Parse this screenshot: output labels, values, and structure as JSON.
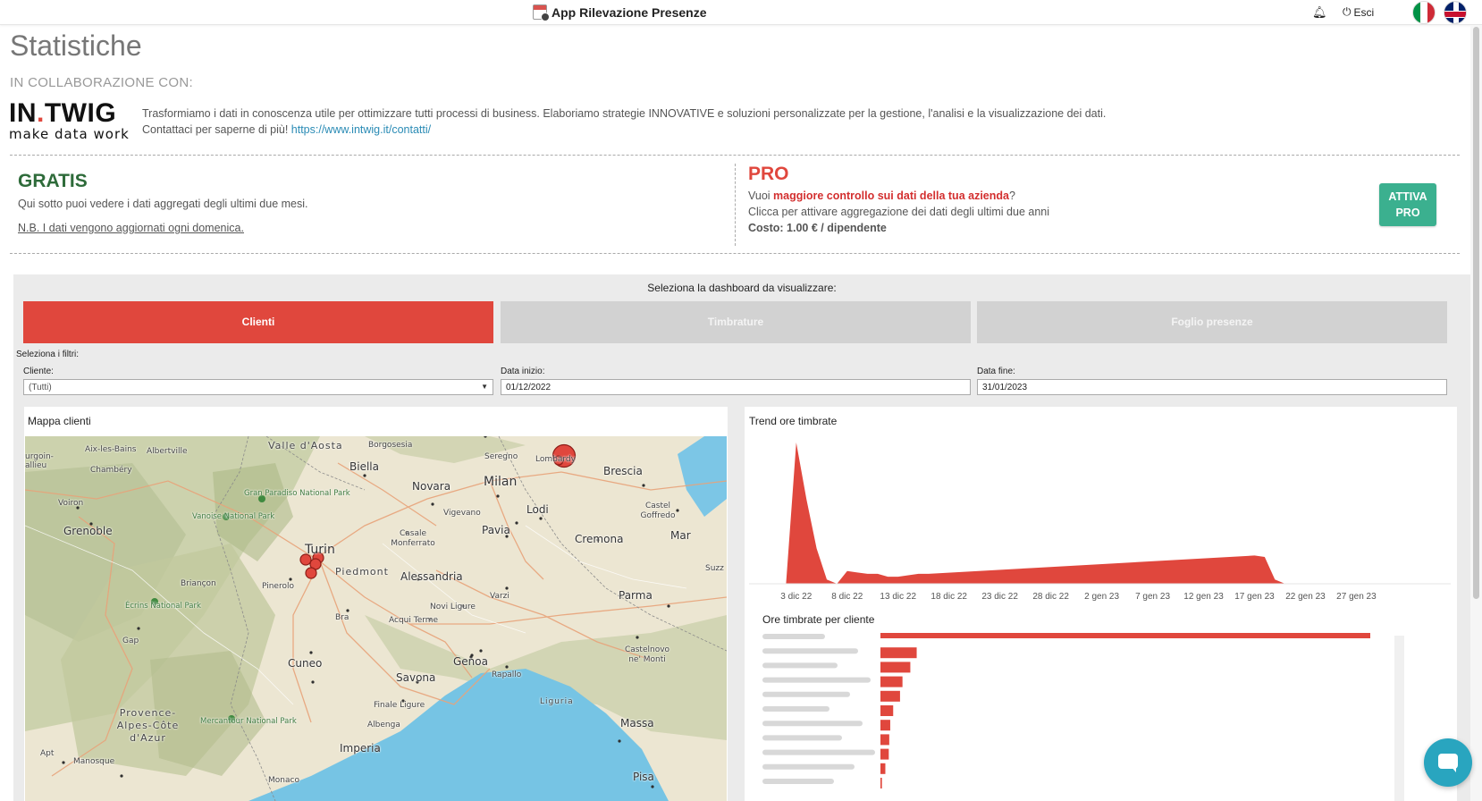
{
  "topbar": {
    "app_title": "App Rilevazione Presenze",
    "logout_label": "Esci",
    "icons": [
      "calendar-icon",
      "bell-icon",
      "power-icon",
      "flag-it-icon",
      "flag-uk-icon"
    ]
  },
  "page": {
    "title": "Statistiche",
    "collab_label": "IN COLLABORAZIONE CON:"
  },
  "intwig": {
    "logo_main": "IN",
    "logo_dot": ".",
    "logo_end": "TWIG",
    "logo_tagline": "make data work",
    "description": "Trasformiamo i dati in conoscenza utile per ottimizzare tutti processi di business. Elaboriamo strategie INNOVATIVE e soluzioni personalizzate per la gestione, l'analisi e la visualizzazione dei dati.",
    "contact_prefix": "Contattaci per saperne di più!",
    "contact_link": "https://www.intwig.it/contatti/"
  },
  "gratis": {
    "title": "GRATIS",
    "description": "Qui sotto puoi vedere i dati aggregati degli ultimi due mesi.",
    "note": "N.B. I dati vengono aggiornati ogni domenica."
  },
  "pro": {
    "title": "PRO",
    "line1_prefix": "Vuoi ",
    "line1_highlight": "maggiore controllo sui dati della tua azienda",
    "line1_suffix": "?",
    "line2": "Clicca per attivare aggregazione dei dati degli ultimi due anni",
    "line3": "Costo: 1.00 € / dipendente",
    "button_line1": "ATTIVA",
    "button_line2": "PRO"
  },
  "dashboard": {
    "select_label": "Seleziona la dashboard da visualizzare:",
    "tabs": [
      {
        "label": "Clienti",
        "active": true
      },
      {
        "label": "Timbrature",
        "active": false
      },
      {
        "label": "Foglio presenze",
        "active": false
      }
    ],
    "filters_label": "Seleziona i filtri:",
    "filters": {
      "cliente_label": "Cliente:",
      "cliente_value": "(Tutti)",
      "data_inizio_label": "Data inizio:",
      "data_inizio_value": "01/12/2022",
      "data_fine_label": "Data fine:",
      "data_fine_value": "31/01/2023"
    },
    "colors": {
      "accent": "#e0473d",
      "tab_inactive": "#d2d2d2",
      "pro_button": "#3bb08f"
    }
  },
  "map": {
    "title": "Mappa clienti",
    "labels": [
      "Valle d'Aosta",
      "Borgosesia",
      "Seregno",
      "Aix-les-Bains",
      "Albertville",
      "urgoin-allieu",
      "Chambéry",
      "Biella",
      "Novara",
      "Milan",
      "Lombardy",
      "Brescia",
      "Voiron",
      "Gran Paradiso National Park",
      "Vigevano",
      "Lodi",
      "Castel Goffredo",
      "Grenoble",
      "Vanoise National Park",
      "Casale Monferrato",
      "Pavia",
      "Cremona",
      "Mar",
      "Turin",
      "Piedmont",
      "Suzz",
      "Briançon",
      "Pinerolo",
      "Alessandria",
      "Varzi",
      "Parma",
      "Écrins National Park",
      "Novi Ligure",
      "Bra",
      "Acqui Terme",
      "Gap",
      "Castelnovo ne' Monti",
      "Cuneo",
      "Genoa",
      "Savona",
      "Rapallo",
      "Finale Ligure",
      "Liguria",
      "Provence-Alpes-Côte d'Azur",
      "Mercantour National Park",
      "Albenga",
      "Massa",
      "Imperia",
      "Apt",
      "Manosque",
      "Pisa",
      "Monaco"
    ]
  },
  "trend": {
    "title": "Trend ore timbrate"
  },
  "ore_clienti": {
    "title": "Ore timbrate per cliente"
  },
  "chart_data": [
    {
      "type": "area",
      "title": "Trend ore timbrate",
      "x_ticks": [
        "3 dic 22",
        "8 dic 22",
        "13 dic 22",
        "18 dic 22",
        "23 dic 22",
        "28 dic 22",
        "2 gen 23",
        "7 gen 23",
        "12 gen 23",
        "17 gen 23",
        "22 gen 23",
        "27 gen 23"
      ],
      "x": [
        "1 dic 22",
        "2 dic 22",
        "3 dic 22",
        "4 dic 22",
        "5 dic 22",
        "6 dic 22",
        "7 dic 22",
        "8 dic 22",
        "9 dic 22",
        "10 dic 22",
        "11 dic 22",
        "12 dic 22",
        "13 dic 22",
        "14 dic 22",
        "15 dic 22",
        "16 dic 22",
        "17 gen 23",
        "18 gen 23",
        "19 gen 23",
        "20 gen 23",
        "21 gen 23",
        "31 gen 23"
      ],
      "values": [
        0,
        0,
        100,
        60,
        25,
        3,
        0,
        9,
        8,
        7,
        7,
        5,
        5,
        6,
        7,
        7,
        20,
        19,
        3,
        0,
        0,
        0
      ],
      "color": "#e0473d"
    },
    {
      "type": "bar",
      "title": "Ore timbrate per cliente",
      "orientation": "horizontal",
      "values": [
        100,
        7.4,
        6.1,
        4.5,
        4.0,
        2.6,
        2.0,
        1.8,
        1.7,
        1.0,
        0.3
      ],
      "color": "#e0473d"
    }
  ]
}
